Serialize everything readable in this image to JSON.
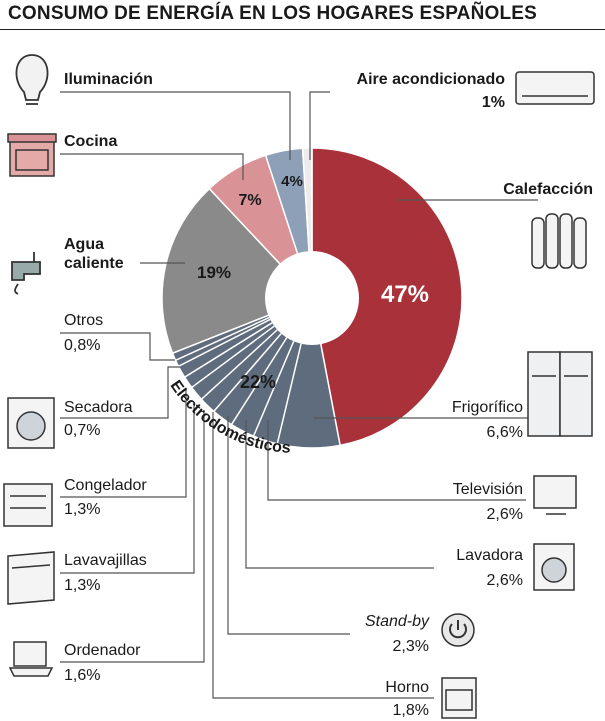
{
  "title": "CONSUMO DE ENERGÍA EN LOS HOGARES ESPAÑOLES",
  "colors": {
    "calefaccion": "#a8313a",
    "electro": "#5e6c7d",
    "agua": "#8a8a8a",
    "cocina": "#d99396",
    "iluminacion": "#8da0b8",
    "aire": "#ececec"
  },
  "chart_data": {
    "type": "pie",
    "style": "donut",
    "title": "CONSUMO DE ENERGÍA EN LOS HOGARES ESPAÑOLES",
    "slices": [
      {
        "label": "Calefacción",
        "value": 47,
        "display": "47%"
      },
      {
        "label": "Electrodomésticos",
        "value": 22,
        "display": "22%"
      },
      {
        "label": "Agua caliente",
        "value": 19,
        "display": "19%"
      },
      {
        "label": "Cocina",
        "value": 7,
        "display": "7%"
      },
      {
        "label": "Iluminación",
        "value": 4,
        "display": "4%"
      },
      {
        "label": "Aire acondicionado",
        "value": 1,
        "display": "1%"
      }
    ],
    "electrodomesticos_breakdown": [
      {
        "label": "Frigorífico",
        "value": 6.6,
        "display": "6,6%"
      },
      {
        "label": "Televisión",
        "value": 2.6,
        "display": "2,6%"
      },
      {
        "label": "Lavadora",
        "value": 2.6,
        "display": "2,6%"
      },
      {
        "label": "Stand-by",
        "value": 2.3,
        "display": "2,3%"
      },
      {
        "label": "Horno",
        "value": 1.8,
        "display": "1,8%"
      },
      {
        "label": "Ordenador",
        "value": 1.6,
        "display": "1,6%"
      },
      {
        "label": "Lavavajillas",
        "value": 1.3,
        "display": "1,3%"
      },
      {
        "label": "Congelador",
        "value": 1.3,
        "display": "1,3%"
      },
      {
        "label": "Secadora",
        "value": 0.7,
        "display": "0,7%"
      },
      {
        "label": "Otros",
        "value": 0.8,
        "display": "0,8%"
      }
    ]
  },
  "labels": {
    "iluminacion": "Iluminación",
    "aire": "Aire acondicionado",
    "aire_pct": "1%",
    "cocina": "Cocina",
    "calefaccion": "Calefacción",
    "agua_1": "Agua",
    "agua_2": "caliente",
    "otros": "Otros",
    "otros_pct": "0,8%",
    "secadora": "Secadora",
    "secadora_pct": "0,7%",
    "congelador": "Congelador",
    "congelador_pct": "1,3%",
    "lavavajillas": "Lavavajillas",
    "lavavajillas_pct": "1,3%",
    "ordenador": "Ordenador",
    "ordenador_pct": "1,6%",
    "frigorifico": "Frigorífico",
    "frigorifico_pct": "6,6%",
    "television": "Televisión",
    "television_pct": "2,6%",
    "lavadora": "Lavadora",
    "lavadora_pct": "2,6%",
    "standby": "Stand-by",
    "standby_pct": "2,3%",
    "horno": "Horno",
    "horno_pct": "1,8%",
    "electro_arc": "Electrodomésticos"
  }
}
